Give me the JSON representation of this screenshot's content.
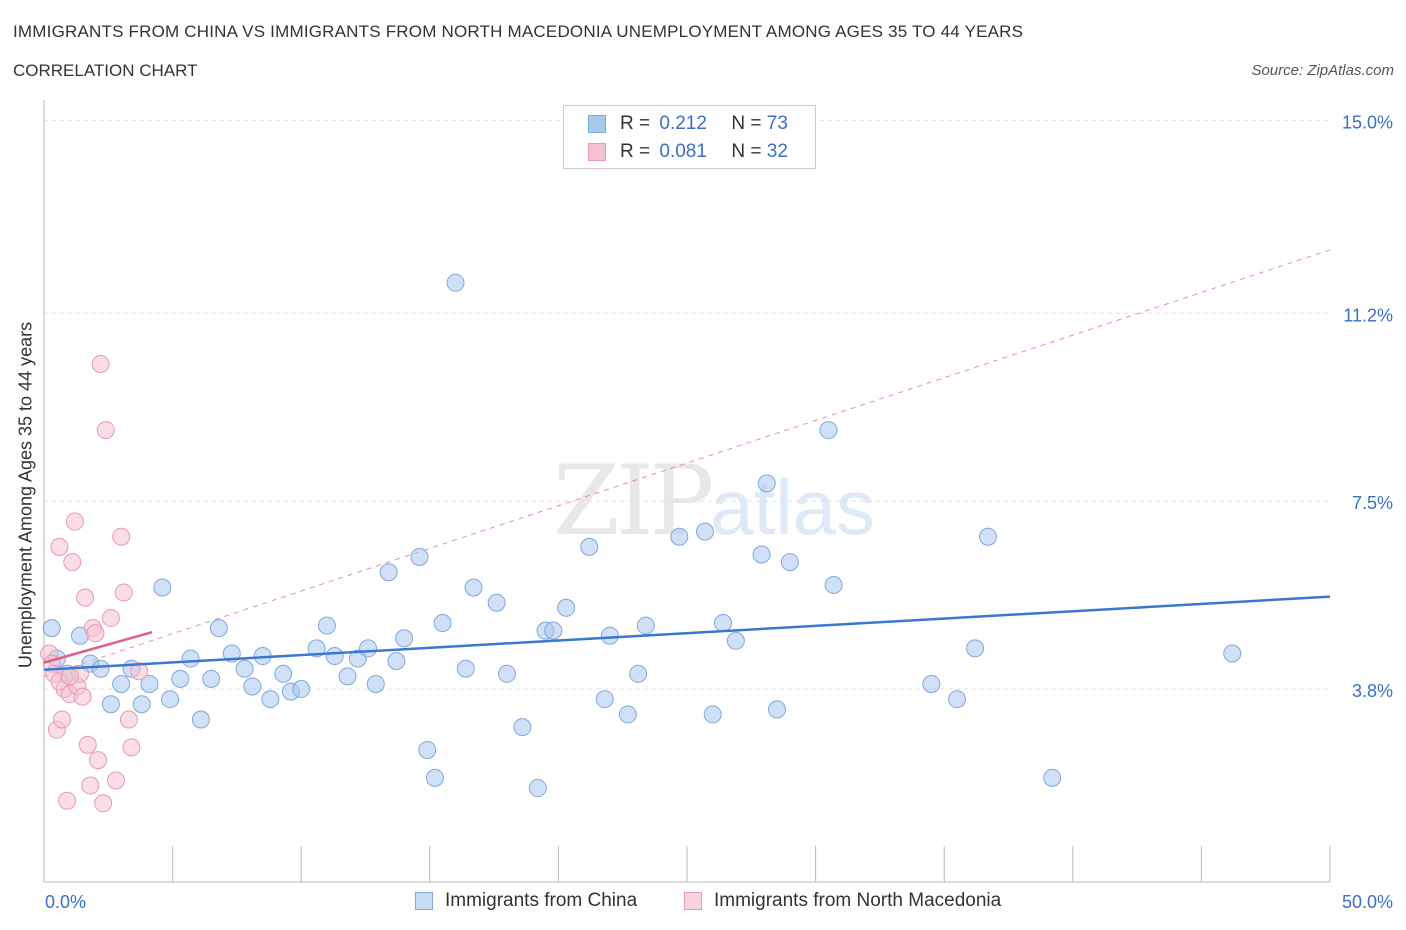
{
  "header": {
    "title": "IMMIGRANTS FROM CHINA VS IMMIGRANTS FROM NORTH MACEDONIA UNEMPLOYMENT AMONG AGES 35 TO 44 YEARS",
    "subtitle": "CORRELATION CHART",
    "source": "Source: ZipAtlas.com"
  },
  "watermark": {
    "main": "ZIP",
    "sub": "atlas"
  },
  "legend": {
    "china": {
      "r_label": "R = ",
      "r_value": "0.212",
      "n_label": "N = ",
      "n_value": "73"
    },
    "macedonia": {
      "r_label": "R = ",
      "r_value": "0.081",
      "n_label": "N = ",
      "n_value": "32"
    }
  },
  "colors": {
    "china_fill": "#a9c8f0",
    "china_stroke": "#7fa8dc",
    "china_line": "#3a78d0",
    "macedonia_fill": "#f6c1d0",
    "macedonia_stroke": "#e79ab2",
    "macedonia_line": "#e0608a",
    "grid": "#dddddd",
    "tick_label": "#3a6fc4"
  },
  "chart_data": {
    "type": "scatter",
    "title": "IMMIGRANTS FROM CHINA VS IMMIGRANTS FROM NORTH MACEDONIA UNEMPLOYMENT AMONG AGES 35 TO 44 YEARS",
    "xlabel": "",
    "ylabel": "Unemployment Among Ages 35 to 44 years",
    "xlim": [
      0,
      50
    ],
    "ylim": [
      0,
      15.4
    ],
    "x_tick_labels": [
      "0.0%",
      "50.0%"
    ],
    "y_ticks": [
      {
        "value": 3.8,
        "label": "3.8%"
      },
      {
        "value": 7.5,
        "label": "7.5%"
      },
      {
        "value": 11.2,
        "label": "11.2%"
      },
      {
        "value": 15.0,
        "label": "15.0%"
      }
    ],
    "series": [
      {
        "name": "Immigrants from China",
        "points": [
          [
            0.3,
            5.0
          ],
          [
            0.5,
            4.4
          ],
          [
            0.9,
            4.1
          ],
          [
            1.4,
            4.85
          ],
          [
            1.8,
            4.3
          ],
          [
            2.2,
            4.2
          ],
          [
            2.6,
            3.5
          ],
          [
            3.0,
            3.9
          ],
          [
            3.4,
            4.2
          ],
          [
            3.8,
            3.5
          ],
          [
            4.1,
            3.9
          ],
          [
            4.6,
            5.8
          ],
          [
            4.9,
            3.6
          ],
          [
            5.3,
            4.0
          ],
          [
            5.7,
            4.4
          ],
          [
            6.1,
            3.2
          ],
          [
            6.5,
            4.0
          ],
          [
            6.8,
            5.0
          ],
          [
            7.3,
            4.5
          ],
          [
            7.8,
            4.2
          ],
          [
            8.1,
            3.85
          ],
          [
            8.5,
            4.45
          ],
          [
            8.8,
            3.6
          ],
          [
            9.3,
            4.1
          ],
          [
            9.6,
            3.75
          ],
          [
            10.0,
            3.8
          ],
          [
            10.6,
            4.6
          ],
          [
            11.0,
            5.05
          ],
          [
            11.3,
            4.45
          ],
          [
            11.8,
            4.05
          ],
          [
            12.2,
            4.4
          ],
          [
            12.6,
            4.6
          ],
          [
            12.9,
            3.9
          ],
          [
            13.4,
            6.1
          ],
          [
            13.7,
            4.35
          ],
          [
            14.0,
            4.8
          ],
          [
            14.6,
            6.4
          ],
          [
            14.9,
            2.6
          ],
          [
            15.2,
            2.05
          ],
          [
            15.5,
            5.1
          ],
          [
            16.0,
            11.8
          ],
          [
            16.4,
            4.2
          ],
          [
            16.7,
            5.8
          ],
          [
            17.6,
            5.5
          ],
          [
            18.0,
            4.1
          ],
          [
            18.6,
            3.05
          ],
          [
            19.2,
            1.85
          ],
          [
            19.5,
            4.95
          ],
          [
            19.8,
            4.95
          ],
          [
            20.3,
            5.4
          ],
          [
            21.2,
            6.6
          ],
          [
            21.8,
            3.6
          ],
          [
            22.0,
            4.85
          ],
          [
            22.7,
            3.3
          ],
          [
            23.1,
            4.1
          ],
          [
            23.4,
            5.05
          ],
          [
            24.7,
            6.8
          ],
          [
            25.7,
            6.9
          ],
          [
            26.0,
            3.3
          ],
          [
            26.4,
            5.1
          ],
          [
            26.9,
            4.75
          ],
          [
            27.9,
            6.45
          ],
          [
            28.1,
            7.85
          ],
          [
            28.5,
            3.4
          ],
          [
            29.0,
            6.3
          ],
          [
            30.5,
            8.9
          ],
          [
            30.7,
            5.85
          ],
          [
            34.5,
            3.9
          ],
          [
            35.5,
            3.6
          ],
          [
            36.2,
            4.6
          ],
          [
            36.7,
            6.8
          ],
          [
            39.2,
            2.05
          ],
          [
            46.2,
            4.5
          ]
        ],
        "trend": {
          "x": [
            0,
            50
          ],
          "y": [
            4.18,
            5.62
          ]
        }
      },
      {
        "name": "Immigrants from North Macedonia",
        "points": [
          [
            0.2,
            4.5
          ],
          [
            0.3,
            4.3
          ],
          [
            0.4,
            4.1
          ],
          [
            0.5,
            3.0
          ],
          [
            0.6,
            6.6
          ],
          [
            0.7,
            3.2
          ],
          [
            0.8,
            3.8
          ],
          [
            0.9,
            1.6
          ],
          [
            1.0,
            3.7
          ],
          [
            1.1,
            6.3
          ],
          [
            1.2,
            7.1
          ],
          [
            1.3,
            3.85
          ],
          [
            1.4,
            4.1
          ],
          [
            1.5,
            3.65
          ],
          [
            1.6,
            5.6
          ],
          [
            1.7,
            2.7
          ],
          [
            1.8,
            1.9
          ],
          [
            1.9,
            5.0
          ],
          [
            2.0,
            4.9
          ],
          [
            2.1,
            2.4
          ],
          [
            2.2,
            10.2
          ],
          [
            2.3,
            1.55
          ],
          [
            2.4,
            8.9
          ],
          [
            2.6,
            5.2
          ],
          [
            2.8,
            2.0
          ],
          [
            3.0,
            6.8
          ],
          [
            3.1,
            5.7
          ],
          [
            3.3,
            3.2
          ],
          [
            3.4,
            2.65
          ],
          [
            3.7,
            4.15
          ],
          [
            0.6,
            3.95
          ],
          [
            1.0,
            4.05
          ]
        ],
        "trend": {
          "x": [
            0,
            4.2
          ],
          "y": [
            4.32,
            4.92
          ]
        },
        "trend_extended": {
          "x": [
            0,
            50
          ],
          "y": [
            4.05,
            12.45
          ]
        }
      }
    ],
    "legend_labels": [
      "Immigrants from China",
      "Immigrants from North Macedonia"
    ]
  }
}
